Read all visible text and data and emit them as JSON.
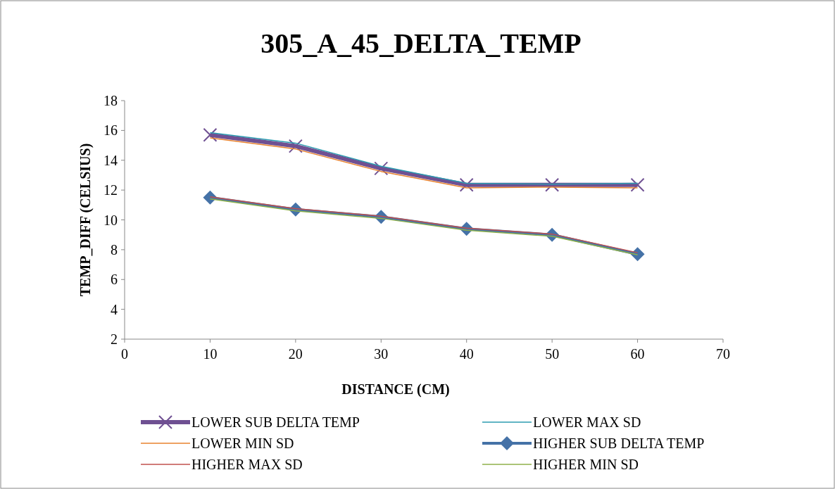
{
  "chart_data": {
    "type": "line",
    "title": "305_A_45_DELTA_TEMP",
    "xlabel": "DISTANCE (CM)",
    "ylabel": "TEMP_DIFF (CELSIUS)",
    "x": [
      10,
      20,
      30,
      40,
      50,
      60
    ],
    "xlim": [
      0,
      70
    ],
    "xticks": [
      0,
      10,
      20,
      30,
      40,
      50,
      60,
      70
    ],
    "ylim": [
      2,
      18
    ],
    "yticks": [
      2,
      4,
      6,
      8,
      10,
      12,
      14,
      16,
      18
    ],
    "grid": false,
    "legend": "bottom",
    "series": [
      {
        "name": "LOWER SUB DELTA TEMP",
        "color": "#6f5092",
        "values": [
          15.7,
          14.95,
          13.45,
          12.35,
          12.35,
          12.35
        ],
        "marker": "cross"
      },
      {
        "name": "LOWER MAX SD",
        "color": "#2c9bb0",
        "values": [
          15.85,
          15.15,
          13.6,
          12.45,
          12.4,
          12.45
        ],
        "marker": "none"
      },
      {
        "name": "LOWER MIN SD",
        "color": "#e8822e",
        "values": [
          15.5,
          14.75,
          13.25,
          12.15,
          12.2,
          12.15
        ],
        "marker": "none"
      },
      {
        "name": "HIGHER SUB DELTA TEMP",
        "color": "#4572a7",
        "values": [
          11.5,
          10.7,
          10.2,
          9.4,
          9.0,
          7.7
        ],
        "marker": "diamond"
      },
      {
        "name": "HIGHER MAX SD",
        "color": "#c0504d",
        "values": [
          11.55,
          10.75,
          10.25,
          9.45,
          9.05,
          7.8
        ],
        "marker": "none"
      },
      {
        "name": "HIGHER MIN SD",
        "color": "#8fb04a",
        "values": [
          11.4,
          10.6,
          10.1,
          9.3,
          8.9,
          7.65
        ],
        "marker": "none"
      }
    ]
  }
}
